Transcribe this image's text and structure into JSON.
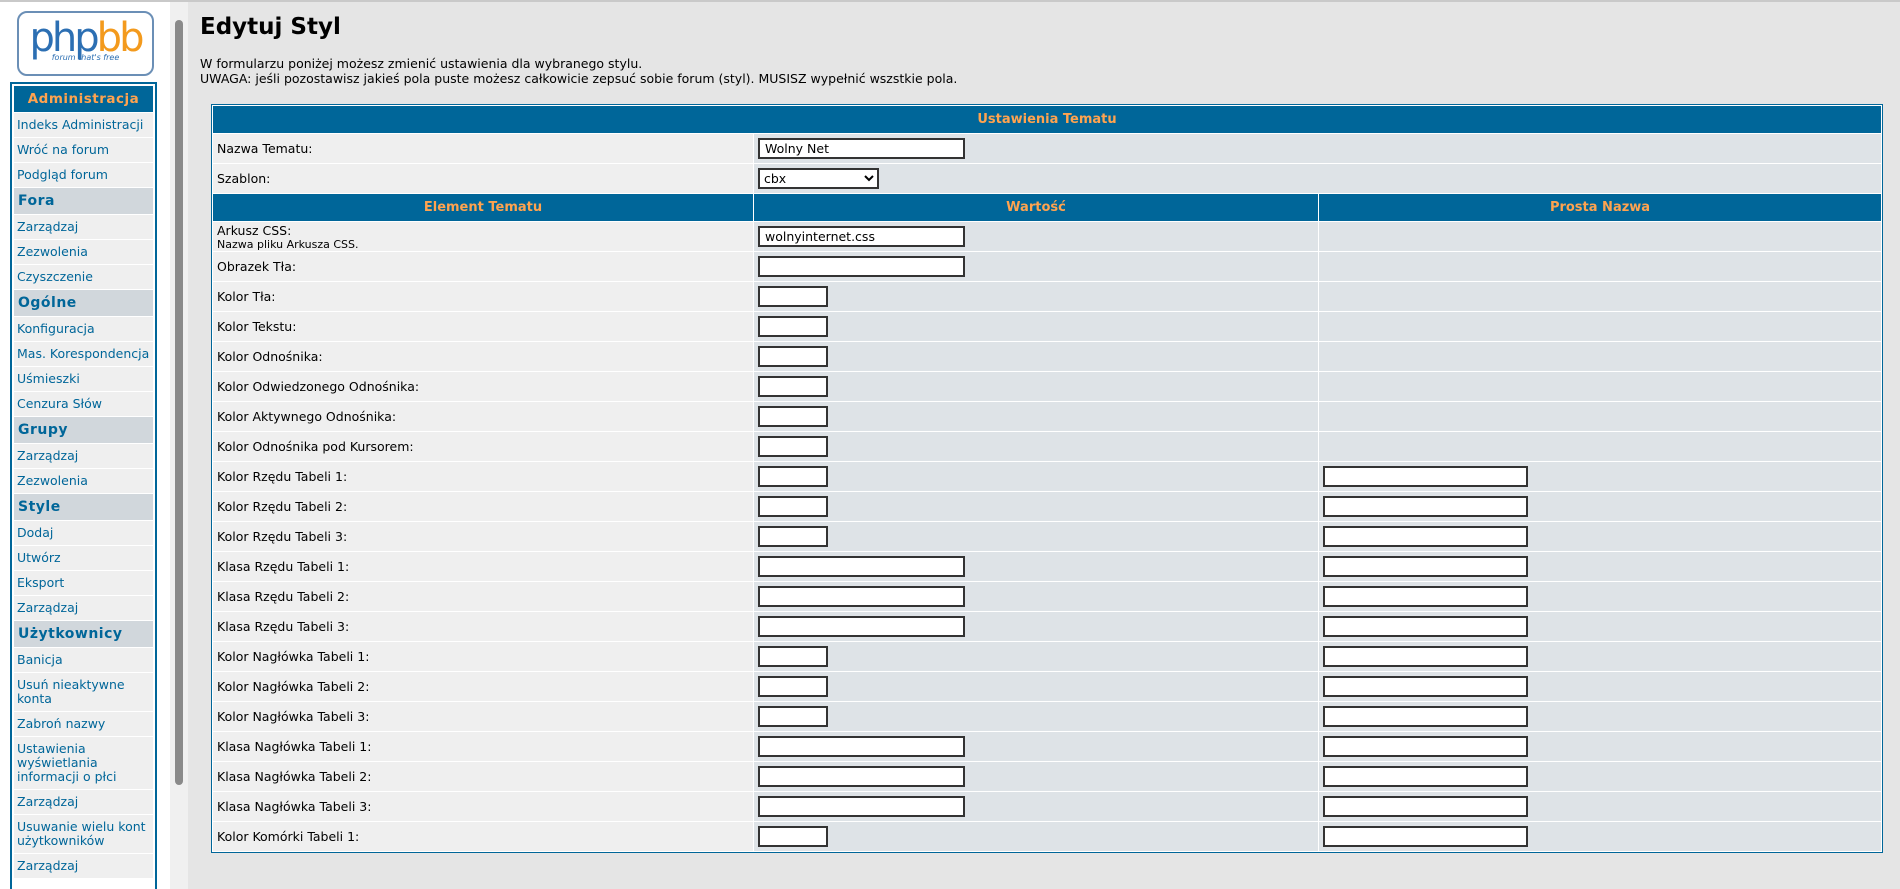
{
  "logo": {
    "first": "php",
    "second": "bb",
    "tagline": "forum that's free"
  },
  "nav": {
    "sections": [
      {
        "title": "Administracja",
        "items": [
          "Indeks Administracji",
          "Wróć na forum",
          "Podgląd forum"
        ]
      },
      {
        "title": "Fora",
        "items": [
          "Zarządzaj",
          "Zezwolenia",
          "Czyszczenie"
        ]
      },
      {
        "title": "Ogólne",
        "items": [
          "Konfiguracja",
          "Mas. Korespondencja",
          "Uśmieszki",
          "Cenzura Słów"
        ]
      },
      {
        "title": "Grupy",
        "items": [
          "Zarządzaj",
          "Zezwolenia"
        ]
      },
      {
        "title": "Style",
        "items": [
          "Dodaj",
          "Utwórz",
          "Eksport",
          "Zarządzaj"
        ]
      },
      {
        "title": "Użytkownicy",
        "items": [
          "Banicja",
          "Usuń nieaktywne konta",
          "Zabroń nazwy",
          "Ustawienia wyświetlania informacji o płci",
          "Zarządzaj",
          "Usuwanie wielu kont użytkowników",
          "Zarządzaj"
        ]
      }
    ]
  },
  "page": {
    "title": "Edytuj Styl",
    "intro": [
      "W formularzu poniżej możesz zmienić ustawienia dla wybranego stylu.",
      "UWAGA: jeśli pozostawisz jakieś pola puste możesz całkowicie zepsuć sobie forum (styl). MUSISZ wypełnić wszstkie pola."
    ]
  },
  "table": {
    "title": "Ustawienia Tematu",
    "theme_name": {
      "label": "Nazwa Tematu:",
      "value": "Wolny Net"
    },
    "template": {
      "label": "Szablon:",
      "value": "cbx"
    },
    "columns": [
      "Element Tematu",
      "Wartość",
      "Prosta Nazwa"
    ],
    "rows": [
      {
        "label": "Arkusz CSS:",
        "note": "Nazwa pliku Arkusza CSS.",
        "value": "wolnyinternet.css"
      },
      {
        "label": "Obrazek Tła:"
      },
      {
        "label": "Kolor Tła:"
      },
      {
        "label": "Kolor Tekstu:"
      },
      {
        "label": "Kolor Odnośnika:"
      },
      {
        "label": "Kolor Odwiedzonego Odnośnika:"
      },
      {
        "label": "Kolor Aktywnego Odnośnika:"
      },
      {
        "label": "Kolor Odnośnika pod Kursorem:"
      },
      {
        "label": "Kolor Rzędu Tabeli 1:"
      },
      {
        "label": "Kolor Rzędu Tabeli 2:"
      },
      {
        "label": "Kolor Rzędu Tabeli 3:"
      },
      {
        "label": "Klasa Rzędu Tabeli 1:"
      },
      {
        "label": "Klasa Rzędu Tabeli 2:"
      },
      {
        "label": "Klasa Rzędu Tabeli 3:"
      },
      {
        "label": "Kolor Nagłówka Tabeli 1:"
      },
      {
        "label": "Kolor Nagłówka Tabeli 2:"
      },
      {
        "label": "Kolor Nagłówka Tabeli 3:"
      },
      {
        "label": "Klasa Nagłówka Tabeli 1:"
      },
      {
        "label": "Klasa Nagłówka Tabeli 2:"
      },
      {
        "label": "Klasa Nagłówka Tabeli 3:"
      },
      {
        "label": "Kolor Komórki Tabeli 1:"
      }
    ]
  }
}
